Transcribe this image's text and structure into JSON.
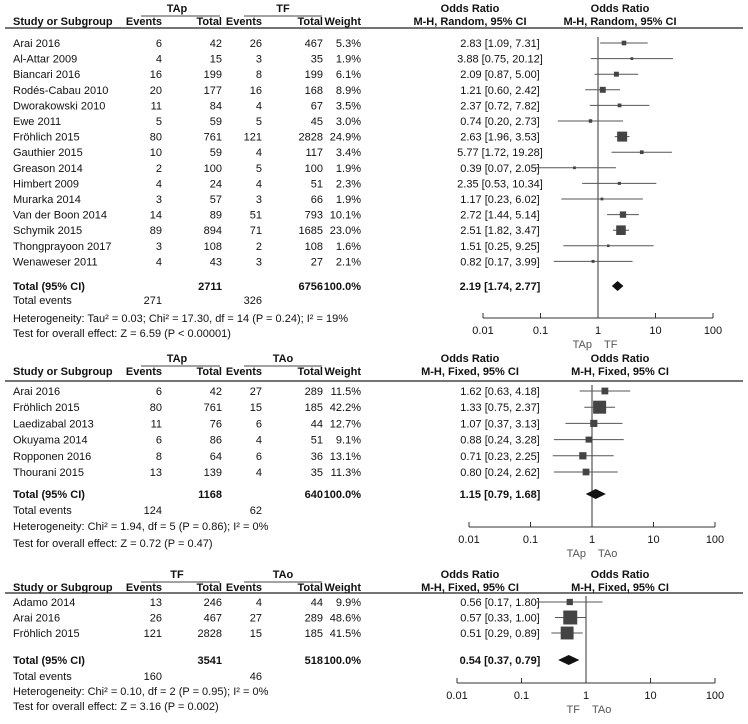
{
  "chart_data": [
    {
      "type": "forest",
      "group_a": "TAp",
      "group_b": "TF",
      "headers": {
        "study": "Study or Subgroup",
        "events": "Events",
        "total": "Total",
        "weight": "Weight",
        "or_title": "Odds Ratio",
        "or_sub": "M-H, Random, 95% CI"
      },
      "studies": [
        {
          "name": "Arai 2016",
          "e1": "6",
          "n1": "42",
          "e2": "26",
          "n2": "467",
          "w": "5.3%",
          "ci": "2.83 [1.09, 7.31]",
          "or": 2.83,
          "lo": 1.09,
          "hi": 7.31
        },
        {
          "name": "Al-Attar 2009",
          "e1": "4",
          "n1": "15",
          "e2": "3",
          "n2": "35",
          "w": "1.9%",
          "ci": "3.88 [0.75, 20.12]",
          "or": 3.88,
          "lo": 0.75,
          "hi": 20.12
        },
        {
          "name": "Biancari 2016",
          "e1": "16",
          "n1": "199",
          "e2": "8",
          "n2": "199",
          "w": "6.1%",
          "ci": "2.09 [0.87, 5.00]",
          "or": 2.09,
          "lo": 0.87,
          "hi": 5.0
        },
        {
          "name": "Rodés-Cabau 2010",
          "e1": "20",
          "n1": "177",
          "e2": "16",
          "n2": "168",
          "w": "8.9%",
          "ci": "1.21 [0.60, 2.42]",
          "or": 1.21,
          "lo": 0.6,
          "hi": 2.42
        },
        {
          "name": "Dworakowski 2010",
          "e1": "11",
          "n1": "84",
          "e2": "4",
          "n2": "67",
          "w": "3.5%",
          "ci": "2.37 [0.72, 7.82]",
          "or": 2.37,
          "lo": 0.72,
          "hi": 7.82
        },
        {
          "name": "Ewe 2011",
          "e1": "5",
          "n1": "59",
          "e2": "5",
          "n2": "45",
          "w": "3.0%",
          "ci": "0.74 [0.20, 2.73]",
          "or": 0.74,
          "lo": 0.2,
          "hi": 2.73
        },
        {
          "name": "Fröhlich 2015",
          "e1": "80",
          "n1": "761",
          "e2": "121",
          "n2": "2828",
          "w": "24.9%",
          "ci": "2.63 [1.96, 3.53]",
          "or": 2.63,
          "lo": 1.96,
          "hi": 3.53
        },
        {
          "name": "Gauthier 2015",
          "e1": "10",
          "n1": "59",
          "e2": "4",
          "n2": "117",
          "w": "3.4%",
          "ci": "5.77 [1.72, 19.28]",
          "or": 5.77,
          "lo": 1.72,
          "hi": 19.28
        },
        {
          "name": "Greason 2014",
          "e1": "2",
          "n1": "100",
          "e2": "5",
          "n2": "100",
          "w": "1.9%",
          "ci": "0.39 [0.07, 2.05]",
          "or": 0.39,
          "lo": 0.07,
          "hi": 2.05
        },
        {
          "name": "Himbert 2009",
          "e1": "4",
          "n1": "24",
          "e2": "4",
          "n2": "51",
          "w": "2.3%",
          "ci": "2.35 [0.53, 10.34]",
          "or": 2.35,
          "lo": 0.53,
          "hi": 10.34
        },
        {
          "name": "Murarka 2014",
          "e1": "3",
          "n1": "57",
          "e2": "3",
          "n2": "66",
          "w": "1.9%",
          "ci": "1.17 [0.23, 6.02]",
          "or": 1.17,
          "lo": 0.23,
          "hi": 6.02
        },
        {
          "name": "Van der Boon 2014",
          "e1": "14",
          "n1": "89",
          "e2": "51",
          "n2": "793",
          "w": "10.1%",
          "ci": "2.72 [1.44, 5.14]",
          "or": 2.72,
          "lo": 1.44,
          "hi": 5.14
        },
        {
          "name": "Schymik 2015",
          "e1": "89",
          "n1": "894",
          "e2": "71",
          "n2": "1685",
          "w": "23.0%",
          "ci": "2.51 [1.82, 3.47]",
          "or": 2.51,
          "lo": 1.82,
          "hi": 3.47
        },
        {
          "name": "Thongprayoon 2017",
          "e1": "3",
          "n1": "108",
          "e2": "2",
          "n2": "108",
          "w": "1.6%",
          "ci": "1.51 [0.25, 9.25]",
          "or": 1.51,
          "lo": 0.25,
          "hi": 9.25
        },
        {
          "name": "Wenaweser 2011",
          "e1": "4",
          "n1": "43",
          "e2": "3",
          "n2": "27",
          "w": "2.1%",
          "ci": "0.82 [0.17, 3.99]",
          "or": 0.82,
          "lo": 0.17,
          "hi": 3.99
        }
      ],
      "total": {
        "label": "Total (95% CI)",
        "n1": "2711",
        "n2": "6756",
        "w": "100.0%",
        "ci": "2.19 [1.74, 2.77]",
        "or": 2.19,
        "lo": 1.74,
        "hi": 2.77
      },
      "total_events": {
        "label": "Total events",
        "e1": "271",
        "e2": "326"
      },
      "heterogeneity": "Heterogeneity: Tau² = 0.03; Chi² = 17.30, df = 14 (P = 0.24); I² = 19%",
      "overall_effect": "Test for overall effect: Z = 6.59 (P < 0.00001)",
      "axis_ticks": [
        0.01,
        0.1,
        1,
        10,
        100
      ],
      "axis_tick_labels": [
        "0.01",
        "0.1",
        "1",
        "10",
        "100"
      ],
      "axis_labels": [
        "TAp",
        "TF"
      ]
    },
    {
      "type": "forest",
      "group_a": "TAp",
      "group_b": "TAo",
      "headers": {
        "study": "Study or Subgroup",
        "events": "Events",
        "total": "Total",
        "weight": "Weight",
        "or_title": "Odds Ratio",
        "or_sub": "M-H, Fixed, 95% CI"
      },
      "studies": [
        {
          "name": "Arai 2016",
          "e1": "6",
          "n1": "42",
          "e2": "27",
          "n2": "289",
          "w": "11.5%",
          "ci": "1.62 [0.63, 4.18]",
          "or": 1.62,
          "lo": 0.63,
          "hi": 4.18
        },
        {
          "name": "Fröhlich 2015",
          "e1": "80",
          "n1": "761",
          "e2": "15",
          "n2": "185",
          "w": "42.2%",
          "ci": "1.33 [0.75, 2.37]",
          "or": 1.33,
          "lo": 0.75,
          "hi": 2.37
        },
        {
          "name": "Laedizabal 2013",
          "e1": "11",
          "n1": "76",
          "e2": "6",
          "n2": "44",
          "w": "12.7%",
          "ci": "1.07 [0.37, 3.13]",
          "or": 1.07,
          "lo": 0.37,
          "hi": 3.13
        },
        {
          "name": "Okuyama 2014",
          "e1": "6",
          "n1": "86",
          "e2": "4",
          "n2": "51",
          "w": "9.1%",
          "ci": "0.88 [0.24, 3.28]",
          "or": 0.88,
          "lo": 0.24,
          "hi": 3.28
        },
        {
          "name": "Ropponen 2016",
          "e1": "8",
          "n1": "64",
          "e2": "6",
          "n2": "36",
          "w": "13.1%",
          "ci": "0.71 [0.23, 2.25]",
          "or": 0.71,
          "lo": 0.23,
          "hi": 2.25
        },
        {
          "name": "Thourani 2015",
          "e1": "13",
          "n1": "139",
          "e2": "4",
          "n2": "35",
          "w": "11.3%",
          "ci": "0.80 [0.24, 2.62]",
          "or": 0.8,
          "lo": 0.24,
          "hi": 2.62
        }
      ],
      "total": {
        "label": "Total (95% CI)",
        "n1": "1168",
        "n2": "640",
        "w": "100.0%",
        "ci": "1.15 [0.79, 1.68]",
        "or": 1.15,
        "lo": 0.79,
        "hi": 1.68
      },
      "total_events": {
        "label": "Total events",
        "e1": "124",
        "e2": "62"
      },
      "heterogeneity": "Heterogeneity: Chi² = 1.94, df = 5 (P = 0.86); I² = 0%",
      "overall_effect": "Test for overall effect: Z = 0.72 (P = 0.47)",
      "axis_ticks": [
        0.01,
        0.1,
        1,
        10,
        100
      ],
      "axis_tick_labels": [
        "0.01",
        "0.1",
        "1",
        "10",
        "100"
      ],
      "axis_labels": [
        "TAp",
        "TAo"
      ]
    },
    {
      "type": "forest",
      "group_a": "TF",
      "group_b": "TAo",
      "headers": {
        "study": "Study or Subgroup",
        "events": "Events",
        "total": "Total",
        "weight": "Weight",
        "or_title": "Odds Ratio",
        "or_sub": "M-H, Fixed, 95% CI"
      },
      "studies": [
        {
          "name": "Adamo 2014",
          "e1": "13",
          "n1": "246",
          "e2": "4",
          "n2": "44",
          "w": "9.9%",
          "ci": "0.56 [0.17, 1.80]",
          "or": 0.56,
          "lo": 0.17,
          "hi": 1.8
        },
        {
          "name": "Arai 2016",
          "e1": "26",
          "n1": "467",
          "e2": "27",
          "n2": "289",
          "w": "48.6%",
          "ci": "0.57 [0.33, 1.00]",
          "or": 0.57,
          "lo": 0.33,
          "hi": 1.0
        },
        {
          "name": "Fröhlich 2015",
          "e1": "121",
          "n1": "2828",
          "e2": "15",
          "n2": "185",
          "w": "41.5%",
          "ci": "0.51 [0.29, 0.89]",
          "or": 0.51,
          "lo": 0.29,
          "hi": 0.89
        }
      ],
      "total": {
        "label": "Total (95% CI)",
        "n1": "3541",
        "n2": "518",
        "w": "100.0%",
        "ci": "0.54 [0.37, 0.79]",
        "or": 0.54,
        "lo": 0.37,
        "hi": 0.79
      },
      "total_events": {
        "label": "Total events",
        "e1": "160",
        "e2": "46"
      },
      "heterogeneity": "Heterogeneity: Chi² = 0.10, df = 2 (P = 0.95); I² = 0%",
      "overall_effect": "Test for overall effect: Z = 3.16 (P = 0.002)",
      "axis_ticks": [
        0.01,
        0.1,
        1,
        10,
        100
      ],
      "axis_tick_labels": [
        "0.01",
        "0.1",
        "1",
        "10",
        "100"
      ],
      "axis_labels": [
        "TF",
        "TAo"
      ]
    }
  ]
}
